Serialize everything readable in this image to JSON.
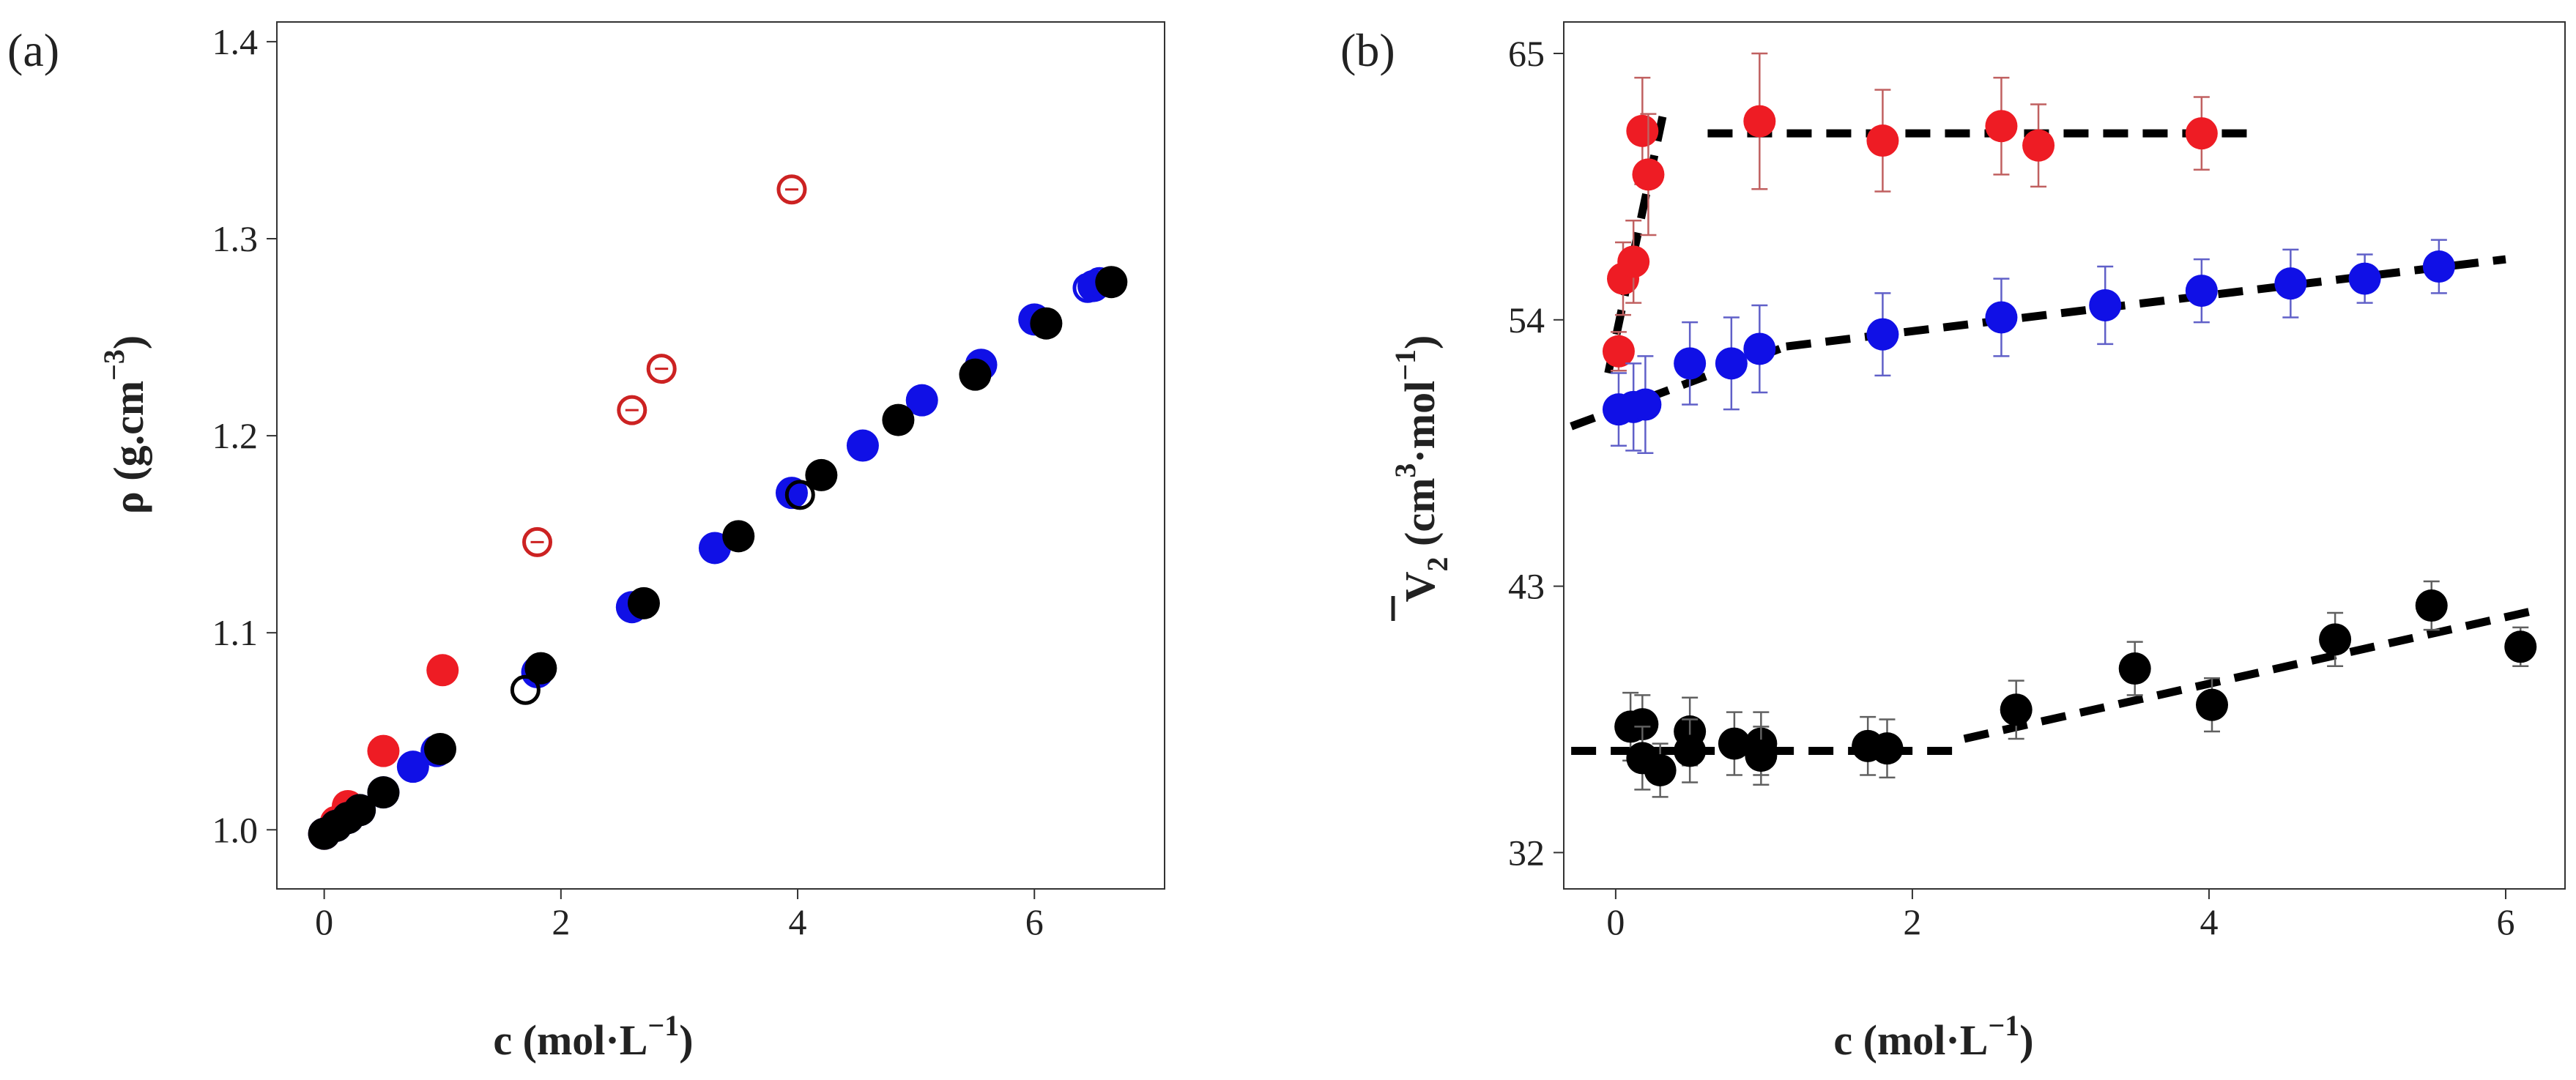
{
  "chart_data": [
    {
      "type": "scatter",
      "panel_label": "(a)",
      "xlabel": "c (mol·L",
      "xlabel_sup": "−1",
      "xlabel_close": ")",
      "ylabel": "ρ (g.cm",
      "ylabel_sup": "−3",
      "ylabel_close": ")",
      "xlim": [
        -0.4,
        7.1
      ],
      "ylim": [
        0.97,
        1.41
      ],
      "xticks": [
        0,
        2,
        4,
        6
      ],
      "yticks": [
        1.0,
        1.1,
        1.2,
        1.3,
        1.4
      ],
      "ytick_labels": [
        "1.0",
        "1.1",
        "1.2",
        "1.3",
        "1.4"
      ],
      "series": [
        {
          "name": "red-filled",
          "color": "#ee1c24",
          "marker": "filled",
          "points": [
            [
              0.0,
              0.998
            ],
            [
              0.1,
              1.004
            ],
            [
              0.2,
              1.012
            ],
            [
              0.5,
              1.04
            ],
            [
              1.0,
              1.081
            ]
          ]
        },
        {
          "name": "red-open-barred",
          "color": "#cc2222",
          "marker": "open-bar",
          "points": [
            [
              1.8,
              1.146
            ],
            [
              2.6,
              1.213
            ],
            [
              2.85,
              1.234
            ],
            [
              3.95,
              1.325
            ]
          ]
        },
        {
          "name": "blue-filled",
          "color": "#1010e6",
          "marker": "filled",
          "points": [
            [
              0.0,
              0.998
            ],
            [
              0.1,
              1.002
            ],
            [
              0.2,
              1.006
            ],
            [
              0.3,
              1.01
            ],
            [
              0.5,
              1.019
            ],
            [
              0.75,
              1.032
            ],
            [
              0.95,
              1.04
            ],
            [
              1.8,
              1.08
            ],
            [
              2.6,
              1.113
            ],
            [
              3.3,
              1.143
            ],
            [
              3.95,
              1.171
            ],
            [
              4.55,
              1.195
            ],
            [
              5.05,
              1.218
            ],
            [
              5.55,
              1.236
            ],
            [
              6.0,
              1.259
            ],
            [
              6.5,
              1.276
            ]
          ]
        },
        {
          "name": "blue-open",
          "color": "#1010e6",
          "marker": "open",
          "points": [
            [
              6.45,
              1.275
            ],
            [
              6.55,
              1.278
            ]
          ]
        },
        {
          "name": "black-open",
          "color": "#000000",
          "marker": "open",
          "points": [
            [
              1.7,
              1.071
            ],
            [
              4.02,
              1.17
            ]
          ]
        },
        {
          "name": "black-filled",
          "color": "#000000",
          "marker": "filled",
          "points": [
            [
              0.0,
              0.998
            ],
            [
              0.1,
              1.002
            ],
            [
              0.2,
              1.006
            ],
            [
              0.3,
              1.01
            ],
            [
              0.5,
              1.019
            ],
            [
              0.98,
              1.041
            ],
            [
              1.83,
              1.082
            ],
            [
              2.7,
              1.115
            ],
            [
              3.5,
              1.149
            ],
            [
              4.2,
              1.18
            ],
            [
              4.85,
              1.208
            ],
            [
              5.5,
              1.231
            ],
            [
              6.1,
              1.257
            ],
            [
              6.65,
              1.278
            ]
          ]
        }
      ]
    },
    {
      "type": "scatter",
      "panel_label": "(b)",
      "xlabel": "c (mol·L",
      "xlabel_sup": "−1",
      "xlabel_close": ")",
      "ylabel_symbol": "V",
      "ylabel_sub": "2",
      "ylabel_unit": " (cm",
      "ylabel_sup1": "3",
      "ylabel_mid": "·mol",
      "ylabel_sup2": "−1",
      "ylabel_close": ")",
      "xlim": [
        -0.35,
        6.4
      ],
      "ylim": [
        30.5,
        66.3
      ],
      "xticks": [
        0,
        2,
        4,
        6
      ],
      "yticks": [
        32,
        43,
        54,
        65
      ],
      "ytick_labels": [
        "32",
        "43",
        "54",
        "65"
      ],
      "series": [
        {
          "name": "red",
          "color": "#ee1c24",
          "errorbar_color": "#c06060",
          "points": [
            [
              0.02,
              52.7,
              0.8
            ],
            [
              0.05,
              55.7,
              1.5
            ],
            [
              0.12,
              56.4,
              1.7
            ],
            [
              0.18,
              61.8,
              2.2
            ],
            [
              0.22,
              60.0,
              2.5
            ],
            [
              0.97,
              62.2,
              2.8
            ],
            [
              1.8,
              61.4,
              2.1
            ],
            [
              2.6,
              62.0,
              2.0
            ],
            [
              2.85,
              61.2,
              1.7
            ],
            [
              3.95,
              61.7,
              1.5
            ]
          ]
        },
        {
          "name": "blue",
          "color": "#1010e6",
          "errorbar_color": "#6060c8",
          "points": [
            [
              0.02,
              50.3,
              1.5
            ],
            [
              0.12,
              50.4,
              1.8
            ],
            [
              0.2,
              50.5,
              2.0
            ],
            [
              0.5,
              52.2,
              1.7
            ],
            [
              0.78,
              52.2,
              1.9
            ],
            [
              0.97,
              52.8,
              1.8
            ],
            [
              1.8,
              53.4,
              1.7
            ],
            [
              2.6,
              54.1,
              1.6
            ],
            [
              3.3,
              54.6,
              1.6
            ],
            [
              3.95,
              55.2,
              1.3
            ],
            [
              4.55,
              55.5,
              1.4
            ],
            [
              5.05,
              55.7,
              1.0
            ],
            [
              5.55,
              56.2,
              1.1
            ]
          ]
        },
        {
          "name": "black",
          "color": "#000000",
          "errorbar_color": "#606060",
          "points": [
            [
              0.1,
              37.2,
              1.4
            ],
            [
              0.18,
              37.3,
              1.2
            ],
            [
              0.18,
              35.9,
              1.3
            ],
            [
              0.3,
              35.4,
              1.1
            ],
            [
              0.5,
              37.0,
              1.4
            ],
            [
              0.5,
              36.2,
              1.3
            ],
            [
              0.8,
              36.5,
              1.3
            ],
            [
              0.98,
              36.5,
              1.3
            ],
            [
              0.98,
              36.0,
              1.2
            ],
            [
              1.7,
              36.4,
              1.2
            ],
            [
              1.83,
              36.3,
              1.2
            ],
            [
              2.7,
              37.9,
              1.2
            ],
            [
              3.5,
              39.6,
              1.1
            ],
            [
              4.02,
              38.1,
              1.1
            ],
            [
              4.85,
              40.8,
              1.1
            ],
            [
              5.5,
              42.2,
              1.0
            ],
            [
              6.1,
              40.5,
              0.8
            ]
          ]
        }
      ],
      "fit_lines": [
        {
          "name": "red-steep-fit",
          "points": [
            [
              -0.05,
              51.8
            ],
            [
              0.32,
              62.5
            ]
          ]
        },
        {
          "name": "red-plateau-fit",
          "points": [
            [
              0.62,
              61.7
            ],
            [
              4.35,
              61.7
            ]
          ]
        },
        {
          "name": "blue-steep-fit",
          "points": [
            [
              -0.3,
              49.6
            ],
            [
              1.15,
              52.9
            ]
          ]
        },
        {
          "name": "blue-shallow-fit",
          "points": [
            [
              1.15,
              52.9
            ],
            [
              6.0,
              56.5
            ]
          ]
        },
        {
          "name": "black-plateau-fit",
          "points": [
            [
              -0.3,
              36.2
            ],
            [
              2.35,
              36.2
            ]
          ]
        },
        {
          "name": "black-rise-fit",
          "points": [
            [
              2.35,
              36.7
            ],
            [
              6.2,
              42.0
            ]
          ]
        }
      ]
    }
  ]
}
